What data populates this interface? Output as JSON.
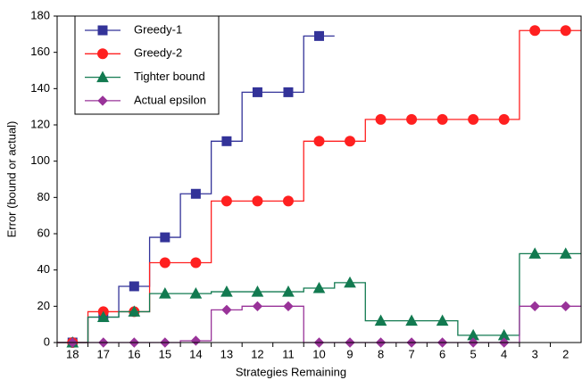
{
  "chart_data": {
    "type": "step-line",
    "x_label": "Strategies Remaining",
    "y_label": "Error (bound or actual)",
    "categories": [
      "18",
      "17",
      "16",
      "15",
      "14",
      "13",
      "12",
      "11",
      "10",
      "9",
      "8",
      "7",
      "6",
      "5",
      "4",
      "3",
      "2"
    ],
    "ylim": [
      0,
      180
    ],
    "yticks": [
      0,
      20,
      40,
      60,
      80,
      100,
      120,
      140,
      160,
      180
    ],
    "grid": false,
    "legend": "upper left",
    "series": [
      {
        "name": "Greedy-1",
        "color": "#333399",
        "marker": "square",
        "values": [
          0,
          14,
          31,
          58,
          82,
          111,
          138,
          138,
          169,
          null,
          null,
          null,
          null,
          null,
          null,
          null,
          null
        ]
      },
      {
        "name": "Greedy-2",
        "color": "#ff2020",
        "marker": "circle",
        "values": [
          0,
          17,
          17,
          44,
          44,
          78,
          78,
          78,
          111,
          111,
          123,
          123,
          123,
          123,
          123,
          172,
          172
        ]
      },
      {
        "name": "Tighter bound",
        "color": "#127a50",
        "marker": "triangle",
        "values": [
          0,
          14,
          17,
          27,
          27,
          28,
          28,
          28,
          30,
          33,
          12,
          12,
          12,
          4,
          4,
          49,
          49
        ]
      },
      {
        "name": "Actual epsilon",
        "color": "#993399",
        "marker": "diamond",
        "values": [
          0,
          0,
          0,
          0,
          1,
          18,
          20,
          20,
          0,
          0,
          0,
          0,
          0,
          0,
          0,
          20,
          20
        ]
      }
    ]
  }
}
